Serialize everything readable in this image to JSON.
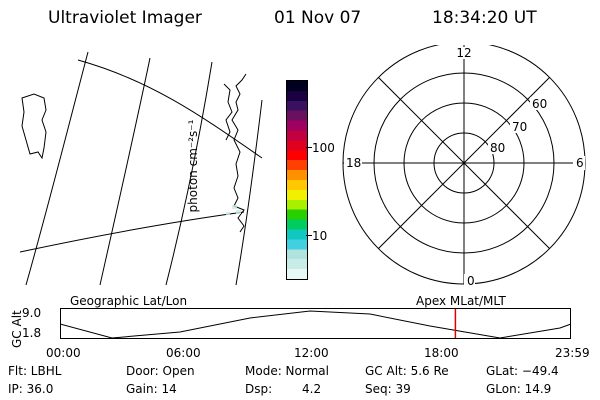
{
  "header": {
    "instrument": "Ultraviolet Imager",
    "date": "01 Nov 07",
    "time": "18:34:20 UT"
  },
  "colorbar": {
    "unit_label": "photon cm⁻²s⁻¹",
    "ticks": [
      {
        "label": "100",
        "value": 100
      },
      {
        "label": "10",
        "value": 10
      }
    ],
    "colors": [
      "#e8f8f4",
      "#c8ece8",
      "#b0e2de",
      "#40d0e0",
      "#10c8c0",
      "#00cc60",
      "#28d000",
      "#a8f000",
      "#f0f000",
      "#ffc800",
      "#ff9000",
      "#ff4000",
      "#ff0000",
      "#e00020",
      "#c00040",
      "#a00060",
      "#6a1060",
      "#3a1060",
      "#1a0040",
      "#000020"
    ]
  },
  "polar_plot": {
    "mlt_labels": {
      "top": "12",
      "left": "18",
      "right": "6",
      "bottom": "0"
    },
    "lat_labels": [
      "60",
      "70",
      "80"
    ]
  },
  "timeline": {
    "left_label": "Geographic Lat/Lon",
    "right_label": "Apex  MLat/MLT",
    "axis_label": "GC Alt",
    "y_ticks": [
      "9.0",
      "1.8"
    ],
    "x_ticks": [
      "00:00",
      "06:00",
      "12:00",
      "18:00",
      "23:59"
    ],
    "current_time_hours": 18.57,
    "marker_color": "#e00000"
  },
  "status": {
    "flt": "Flt: LBHL",
    "door": "Door: Open",
    "mode": "Mode: Normal",
    "gc_alt": "GC Alt: 5.6 Re",
    "glat": "GLat: −49.4",
    "ip": "IP: 36.0",
    "gain": "Gain: 14",
    "dsp_label": "Dsp:",
    "dsp_value": "4.2",
    "seq": "Seq: 39",
    "glon": "GLon:  14.9"
  }
}
